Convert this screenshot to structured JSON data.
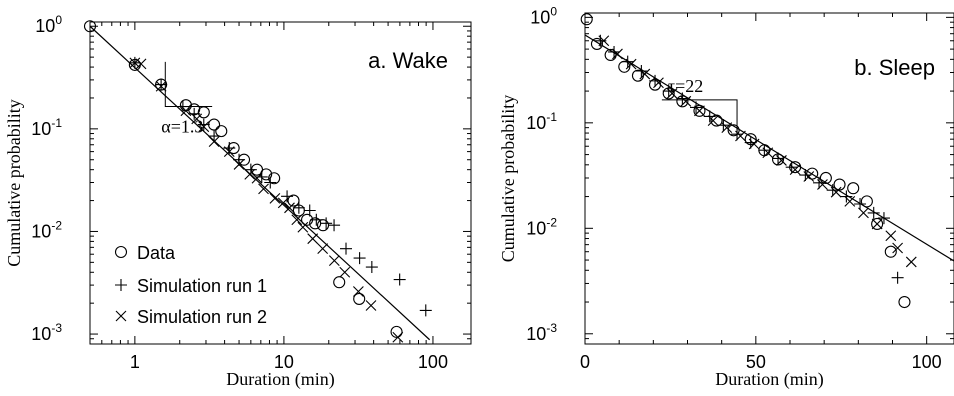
{
  "chart_data": [
    {
      "type": "scatter",
      "panel_label": "a. Wake",
      "xlabel": "Duration (min)",
      "ylabel": "Cumulative probability",
      "xscale": "log",
      "yscale": "log",
      "xlim": [
        0.5,
        180
      ],
      "ylim": [
        0.0008,
        1.1
      ],
      "x_ticks": [
        {
          "value": 1,
          "label": "1"
        },
        {
          "value": 10,
          "label": "10"
        },
        {
          "value": 100,
          "label": "100"
        }
      ],
      "y_ticks": [
        {
          "value": 1,
          "base": "10",
          "exp": "0"
        },
        {
          "value": 0.1,
          "base": "10",
          "exp": "-1"
        },
        {
          "value": 0.01,
          "base": "10",
          "exp": "-2"
        },
        {
          "value": 0.001,
          "base": "10",
          "exp": "-3"
        }
      ],
      "legend_position": "bottom-left",
      "series": [
        {
          "name": "Data",
          "marker": "circle",
          "points": [
            [
              0.5,
              1.0
            ],
            [
              1.0,
              0.42
            ],
            [
              1.5,
              0.27
            ],
            [
              2.2,
              0.17
            ],
            [
              2.5,
              0.155
            ],
            [
              2.9,
              0.145
            ],
            [
              3.4,
              0.11
            ],
            [
              3.8,
              0.095
            ],
            [
              4.6,
              0.065
            ],
            [
              5.4,
              0.05
            ],
            [
              6.6,
              0.04
            ],
            [
              7.6,
              0.036
            ],
            [
              8.6,
              0.033
            ],
            [
              11.6,
              0.02
            ],
            [
              12.6,
              0.016
            ],
            [
              14.3,
              0.013
            ],
            [
              16.2,
              0.012
            ],
            [
              18.3,
              0.0115
            ],
            [
              23.5,
              0.0032
            ],
            [
              32.0,
              0.0022
            ],
            [
              57.0,
              0.00105
            ]
          ]
        },
        {
          "name": "Simulation run 1",
          "marker": "plus",
          "points": [
            [
              1.0,
              0.44
            ],
            [
              1.5,
              0.27
            ],
            [
              2.1,
              0.165
            ],
            [
              2.5,
              0.14
            ],
            [
              2.9,
              0.11
            ],
            [
              3.4,
              0.085
            ],
            [
              4.3,
              0.065
            ],
            [
              5.0,
              0.05
            ],
            [
              6.0,
              0.04
            ],
            [
              7.1,
              0.034
            ],
            [
              8.1,
              0.03
            ],
            [
              10.5,
              0.022
            ],
            [
              12.6,
              0.017
            ],
            [
              14.9,
              0.016
            ],
            [
              16.5,
              0.013
            ],
            [
              19.2,
              0.012
            ],
            [
              21.7,
              0.0115
            ],
            [
              26.1,
              0.0068
            ],
            [
              32.2,
              0.0055
            ],
            [
              38.9,
              0.0045
            ],
            [
              59.8,
              0.0034
            ],
            [
              89.5,
              0.0017
            ]
          ]
        },
        {
          "name": "Simulation run 2",
          "marker": "cross",
          "points": [
            [
              1.0,
              0.44
            ],
            [
              1.1,
              0.43
            ],
            [
              1.5,
              0.26
            ],
            [
              2.2,
              0.15
            ],
            [
              2.6,
              0.125
            ],
            [
              2.9,
              0.105
            ],
            [
              3.4,
              0.075
            ],
            [
              4.3,
              0.06
            ],
            [
              5.0,
              0.045
            ],
            [
              5.9,
              0.036
            ],
            [
              6.6,
              0.033
            ],
            [
              7.3,
              0.026
            ],
            [
              8.7,
              0.021
            ],
            [
              9.9,
              0.019
            ],
            [
              10.9,
              0.017
            ],
            [
              12.2,
              0.013
            ],
            [
              13.4,
              0.011
            ],
            [
              15.6,
              0.0085
            ],
            [
              18.2,
              0.0068
            ],
            [
              21.8,
              0.0052
            ],
            [
              25.6,
              0.004
            ],
            [
              31.6,
              0.0026
            ],
            [
              38.4,
              0.0019
            ],
            [
              58.1,
              0.00093
            ]
          ]
        }
      ],
      "fit_line": {
        "points": [
          [
            0.5,
            1.0
          ],
          [
            95,
            0.00088
          ]
        ]
      },
      "annotation": {
        "text": "α=1.3",
        "corner": [
          1.6,
          0.165
        ],
        "step_end": [
          3.3,
          0.165
        ],
        "slope_end": [
          1.6,
          0.45
        ]
      }
    },
    {
      "type": "scatter",
      "panel_label": "b. Sleep",
      "xlabel": "Duration (min)",
      "ylabel": "Cumulative probability",
      "xscale": "linear",
      "yscale": "log",
      "xlim": [
        0,
        108
      ],
      "ylim": [
        0.0008,
        1.1
      ],
      "x_ticks": [
        {
          "value": 0,
          "label": "0"
        },
        {
          "value": 50,
          "label": "50"
        },
        {
          "value": 100,
          "label": "100"
        }
      ],
      "y_ticks": [
        {
          "value": 1,
          "base": "10",
          "exp": "0"
        },
        {
          "value": 0.1,
          "base": "10",
          "exp": "-1"
        },
        {
          "value": 0.01,
          "base": "10",
          "exp": "-2"
        },
        {
          "value": 0.001,
          "base": "10",
          "exp": "-3"
        }
      ],
      "series": [
        {
          "name": "Data",
          "marker": "circle",
          "points": [
            [
              0.5,
              0.96
            ],
            [
              3.5,
              0.56
            ],
            [
              7.5,
              0.44
            ],
            [
              11.5,
              0.34
            ],
            [
              15.5,
              0.28
            ],
            [
              20.5,
              0.23
            ],
            [
              24.5,
              0.19
            ],
            [
              28.5,
              0.16
            ],
            [
              33.5,
              0.13
            ],
            [
              38.5,
              0.105
            ],
            [
              43.5,
              0.085
            ],
            [
              48.5,
              0.07
            ],
            [
              52.5,
              0.055
            ],
            [
              56.5,
              0.045
            ],
            [
              61.5,
              0.038
            ],
            [
              66.5,
              0.033
            ],
            [
              70.5,
              0.03
            ],
            [
              74.5,
              0.026
            ],
            [
              78.5,
              0.024
            ],
            [
              82.5,
              0.018
            ],
            [
              85.5,
              0.011
            ],
            [
              89.5,
              0.006
            ],
            [
              93.5,
              0.002
            ]
          ]
        },
        {
          "name": "Simulation run 1",
          "marker": "plus",
          "points": [
            [
              4.5,
              0.6
            ],
            [
              8.5,
              0.47
            ],
            [
              12.5,
              0.38
            ],
            [
              16.5,
              0.31
            ],
            [
              20.5,
              0.25
            ],
            [
              24.5,
              0.2
            ],
            [
              28.5,
              0.17
            ],
            [
              32.5,
              0.14
            ],
            [
              36.5,
              0.115
            ],
            [
              40.5,
              0.095
            ],
            [
              44.5,
              0.078
            ],
            [
              48.5,
              0.065
            ],
            [
              52.5,
              0.055
            ],
            [
              56.5,
              0.046
            ],
            [
              60.5,
              0.038
            ],
            [
              64.5,
              0.032
            ],
            [
              68.5,
              0.027
            ],
            [
              72.5,
              0.023
            ],
            [
              76.5,
              0.02
            ],
            [
              80.5,
              0.017
            ],
            [
              84.5,
              0.014
            ],
            [
              87.5,
              0.0125
            ],
            [
              91.5,
              0.0034
            ]
          ]
        },
        {
          "name": "Simulation run 2",
          "marker": "cross",
          "points": [
            [
              5.5,
              0.6
            ],
            [
              9.5,
              0.45
            ],
            [
              13.5,
              0.36
            ],
            [
              17.5,
              0.29
            ],
            [
              21.5,
              0.24
            ],
            [
              25.5,
              0.19
            ],
            [
              29.5,
              0.16
            ],
            [
              33.5,
              0.13
            ],
            [
              37.5,
              0.105
            ],
            [
              41.5,
              0.09
            ],
            [
              45.5,
              0.075
            ],
            [
              49.5,
              0.063
            ],
            [
              53.5,
              0.052
            ],
            [
              57.5,
              0.044
            ],
            [
              61.5,
              0.036
            ],
            [
              65.5,
              0.031
            ],
            [
              69.5,
              0.026
            ],
            [
              73.5,
              0.022
            ],
            [
              77.5,
              0.018
            ],
            [
              81.5,
              0.014
            ],
            [
              85.5,
              0.011
            ],
            [
              89.5,
              0.0085
            ],
            [
              91.5,
              0.0065
            ],
            [
              95.5,
              0.0048
            ]
          ]
        }
      ],
      "fit_line": {
        "points": [
          [
            0,
            0.68
          ],
          [
            108,
            0.0049
          ]
        ]
      },
      "annotation": {
        "text": "τ=22",
        "corner": [
          44.5,
          0.165
        ],
        "step_end": [
          22.5,
          0.165
        ],
        "slope_end": [
          44.5,
          0.082
        ]
      }
    }
  ]
}
